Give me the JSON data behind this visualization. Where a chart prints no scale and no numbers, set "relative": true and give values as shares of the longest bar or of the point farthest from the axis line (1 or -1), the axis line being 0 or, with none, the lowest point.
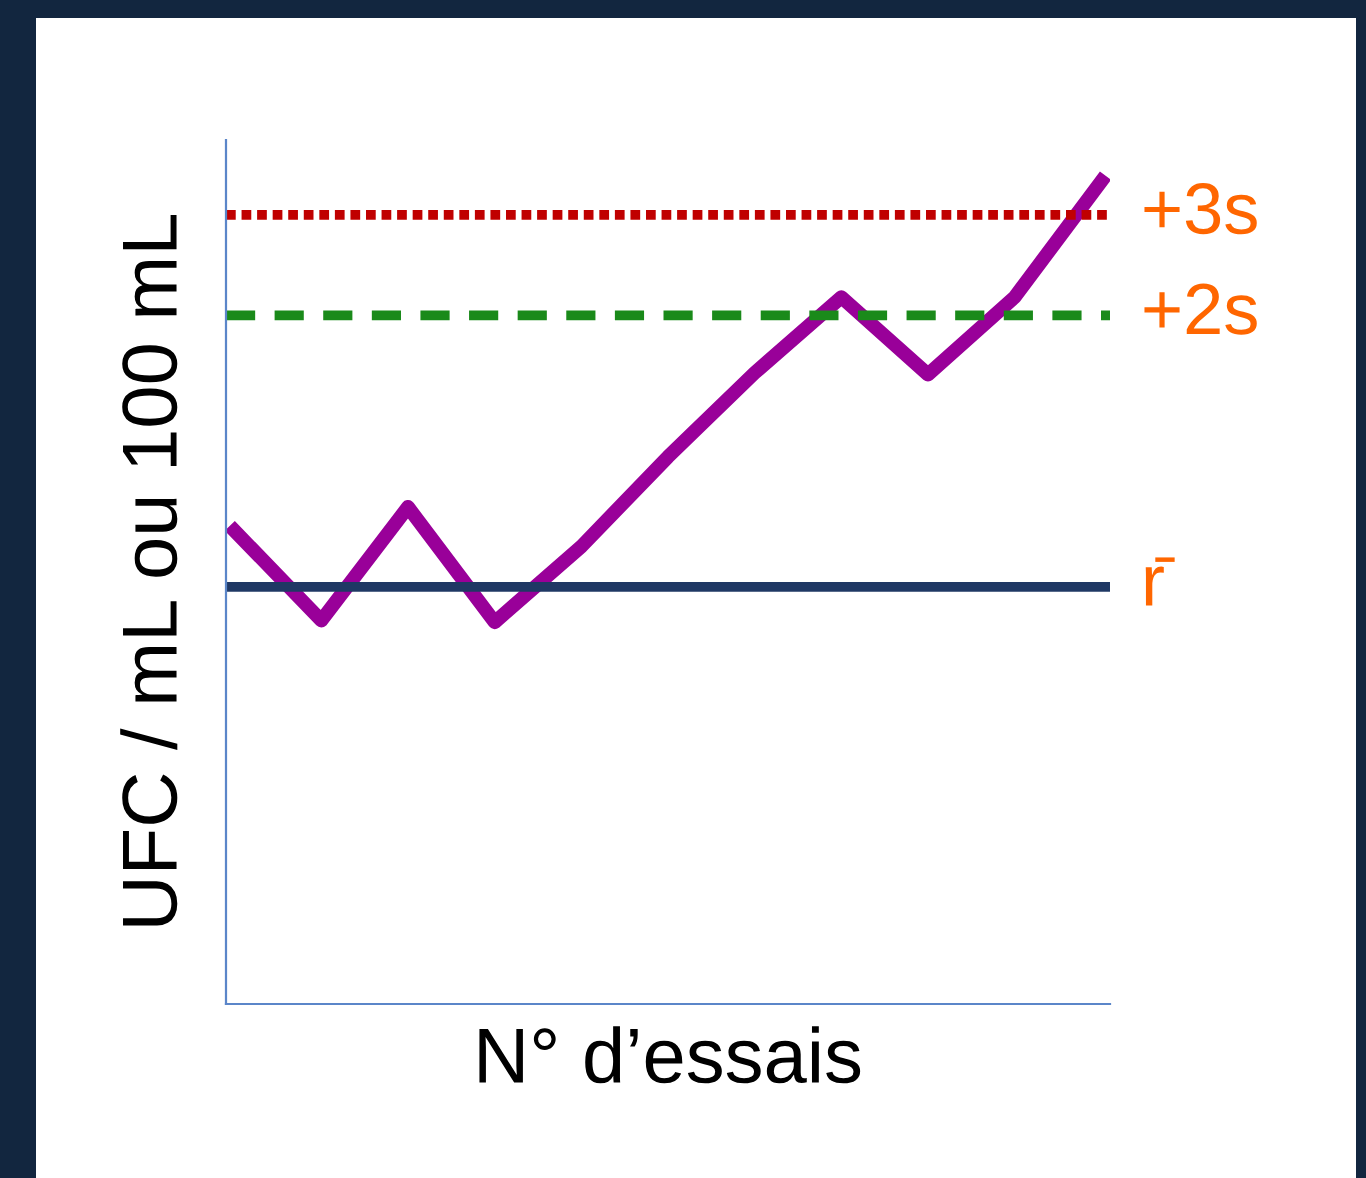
{
  "chart_data": {
    "type": "line",
    "relative": true,
    "xlabel": "N° d’essais",
    "ylabel": "UFC / mL ou 100 mL",
    "categories": [
      null,
      null,
      null,
      null,
      null,
      null,
      null,
      null,
      null,
      null,
      null
    ],
    "series": [
      {
        "color": "#990099",
        "values": [
          0.575,
          0.466,
          0.604,
          0.464,
          0.556,
          0.665,
          0.767,
          0.859,
          0.765,
          0.859,
          1.0
        ]
      }
    ],
    "ref_lines": [
      {
        "axis": "y",
        "value": 0.507,
        "label": "r̄",
        "color": "#1f3864",
        "line_style": "solid"
      },
      {
        "axis": "y",
        "value": 0.837,
        "label": "+2s",
        "color": "#1a8a1a",
        "line_style": "dashed"
      },
      {
        "axis": "y",
        "value": 0.959,
        "label": "+3s",
        "color": "#c00000",
        "line_style": "dotted"
      }
    ],
    "grid": false,
    "legend": false,
    "marker": "none",
    "line_style": "solid",
    "tick_labels": false
  }
}
